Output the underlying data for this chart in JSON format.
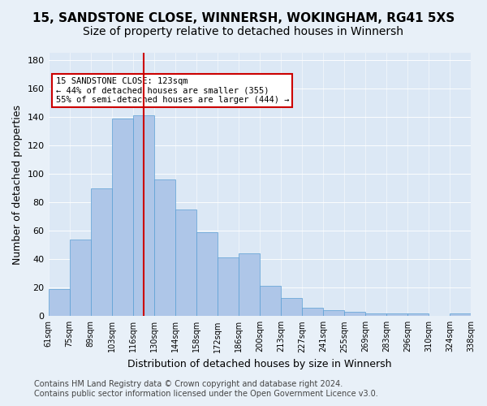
{
  "title1": "15, SANDSTONE CLOSE, WINNERSH, WOKINGHAM, RG41 5XS",
  "title2": "Size of property relative to detached houses in Winnersh",
  "xlabel": "Distribution of detached houses by size in Winnersh",
  "ylabel": "Number of detached properties",
  "bar_labels": [
    "61sqm",
    "75sqm",
    "89sqm",
    "103sqm",
    "116sqm",
    "130sqm",
    "144sqm",
    "158sqm",
    "172sqm",
    "186sqm",
    "200sqm",
    "213sqm",
    "227sqm",
    "241sqm",
    "255sqm",
    "269sqm",
    "283sqm",
    "296sqm",
    "310sqm",
    "324sqm",
    "338sqm"
  ],
  "bar_values": [
    19,
    54,
    90,
    139,
    141,
    96,
    75,
    59,
    41,
    44,
    21,
    13,
    6,
    4,
    3,
    2,
    2,
    2,
    0,
    2
  ],
  "bar_color": "#aec6e8",
  "bar_edge_color": "#5a9fd4",
  "vline_x": 4.5,
  "vline_color": "#cc0000",
  "annotation_text": "15 SANDSTONE CLOSE: 123sqm\n← 44% of detached houses are smaller (355)\n55% of semi-detached houses are larger (444) →",
  "annotation_box_color": "#ffffff",
  "annotation_box_edge": "#cc0000",
  "ylim": [
    0,
    185
  ],
  "yticks": [
    0,
    20,
    40,
    60,
    80,
    100,
    120,
    140,
    160,
    180
  ],
  "footer": "Contains HM Land Registry data © Crown copyright and database right 2024.\nContains public sector information licensed under the Open Government Licence v3.0.",
  "bg_color": "#e8f0f8",
  "plot_bg_color": "#dce8f5",
  "title1_fontsize": 11,
  "title2_fontsize": 10,
  "xlabel_fontsize": 9,
  "ylabel_fontsize": 9,
  "footer_fontsize": 7
}
